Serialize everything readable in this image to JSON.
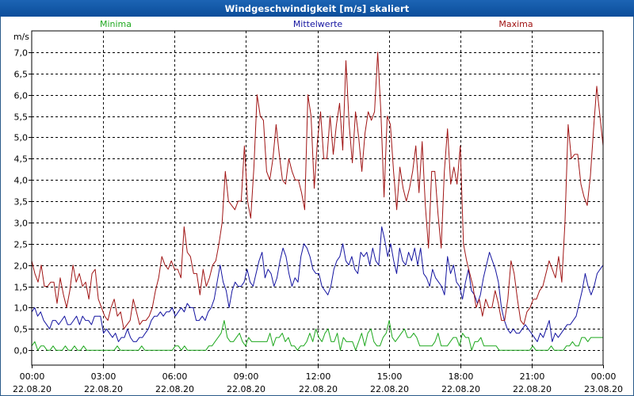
{
  "window": {
    "title": "Windgeschwindigkeit [m/s] skaliert"
  },
  "chart_data": {
    "type": "line",
    "title": "Windgeschwindigkeit [m/s] skaliert",
    "ylabel": "m/s",
    "xlabel": "",
    "ylim": [
      -0.35,
      7.5
    ],
    "xlim": [
      0,
      24
    ],
    "grid": true,
    "y_ticks": [
      "0,0",
      "0,5",
      "1,0",
      "1,5",
      "2,0",
      "2,5",
      "3,0",
      "3,5",
      "4,0",
      "4,5",
      "5,0",
      "5,5",
      "6,0",
      "6,5",
      "7,0"
    ],
    "x_ticks": [
      {
        "time": "00:00",
        "date": "22.08.20"
      },
      {
        "time": "03:00",
        "date": "22.08.20"
      },
      {
        "time": "06:00",
        "date": "22.08.20"
      },
      {
        "time": "09:00",
        "date": "22.08.20"
      },
      {
        "time": "12:00",
        "date": "22.08.20"
      },
      {
        "time": "15:00",
        "date": "22.08.20"
      },
      {
        "time": "18:00",
        "date": "22.08.20"
      },
      {
        "time": "21:00",
        "date": "22.08.20"
      },
      {
        "time": "00:00",
        "date": "23.08.20"
      }
    ],
    "series": [
      {
        "name": "Minima",
        "color": "#1fa81f",
        "values": [
          0.1,
          0.2,
          0.0,
          0.1,
          0.1,
          0.0,
          0.0,
          0.1,
          0.0,
          0.0,
          0.0,
          0.1,
          0.0,
          0.0,
          0.1,
          0.0,
          0.0,
          0.1,
          0.0,
          0.0,
          0.0,
          0.0,
          0.0,
          0.0,
          0.0,
          0.0,
          0.0,
          0.0,
          0.1,
          0.0,
          0.0,
          0.0,
          0.0,
          0.0,
          0.0,
          0.0,
          0.1,
          0.0,
          0.0,
          0.0,
          0.0,
          0.0,
          0.0,
          0.0,
          0.0,
          0.0,
          0.0,
          0.1,
          0.1,
          0.0,
          0.1,
          0.0,
          0.0,
          0.0,
          0.0,
          0.0,
          0.0,
          0.0,
          0.1,
          0.1,
          0.2,
          0.3,
          0.4,
          0.7,
          0.3,
          0.2,
          0.2,
          0.3,
          0.4,
          0.2,
          0.1,
          0.3,
          0.2,
          0.2,
          0.2,
          0.2,
          0.2,
          0.2,
          0.4,
          0.1,
          0.3,
          0.3,
          0.4,
          0.2,
          0.3,
          0.1,
          0.1,
          0.0,
          0.1,
          0.1,
          0.2,
          0.4,
          0.2,
          0.5,
          0.3,
          0.2,
          0.4,
          0.5,
          0.2,
          0.2,
          0.4,
          0.0,
          0.3,
          0.2,
          0.2,
          0.2,
          0.0,
          0.2,
          0.4,
          0.1,
          0.4,
          0.5,
          0.2,
          0.1,
          0.1,
          0.3,
          0.4,
          0.7,
          0.3,
          0.2,
          0.3,
          0.4,
          0.5,
          0.3,
          0.3,
          0.4,
          0.3,
          0.1,
          0.1,
          0.1,
          0.1,
          0.1,
          0.2,
          0.4,
          0.1,
          0.1,
          0.1,
          0.2,
          0.3,
          0.3,
          0.1,
          0.4,
          0.3,
          0.3,
          0.0,
          0.2,
          0.2,
          0.3,
          0.1,
          0.1,
          0.1,
          0.1,
          0.1,
          0.0,
          0.0,
          0.0,
          0.0,
          0.0,
          0.0,
          0.0,
          0.0,
          0.0,
          0.0,
          0.0,
          0.1,
          0.0,
          0.0,
          0.0,
          0.0,
          0.0,
          0.1,
          0.0,
          0.0,
          0.0,
          0.0,
          0.1,
          0.1,
          0.2,
          0.1,
          0.1,
          0.3,
          0.3,
          0.2,
          0.3,
          0.3,
          0.3,
          0.3,
          0.3
        ]
      },
      {
        "name": "Mittelwerte",
        "color": "#1414a0",
        "values": [
          0.9,
          1.0,
          0.8,
          0.9,
          0.7,
          0.6,
          0.5,
          0.7,
          0.7,
          0.6,
          0.7,
          0.8,
          0.6,
          0.6,
          0.7,
          0.8,
          0.6,
          0.8,
          0.7,
          0.7,
          0.6,
          0.8,
          0.8,
          0.8,
          0.4,
          0.5,
          0.4,
          0.3,
          0.4,
          0.2,
          0.3,
          0.3,
          0.5,
          0.3,
          0.2,
          0.2,
          0.3,
          0.3,
          0.4,
          0.5,
          0.7,
          0.8,
          0.8,
          0.9,
          0.8,
          0.9,
          0.9,
          1.0,
          0.8,
          0.9,
          1.0,
          0.9,
          1.1,
          1.0,
          1.0,
          0.7,
          0.7,
          0.8,
          0.7,
          0.9,
          1.0,
          1.2,
          1.6,
          2.0,
          1.6,
          1.4,
          1.0,
          1.4,
          1.6,
          1.5,
          1.5,
          1.6,
          1.9,
          1.6,
          1.5,
          1.8,
          2.1,
          2.3,
          1.7,
          1.9,
          1.8,
          1.5,
          1.7,
          2.1,
          2.4,
          2.2,
          1.8,
          1.5,
          1.7,
          1.6,
          2.2,
          2.5,
          2.4,
          2.2,
          1.9,
          1.8,
          1.8,
          1.5,
          1.4,
          1.3,
          1.5,
          1.9,
          2.1,
          2.2,
          2.5,
          2.1,
          2.0,
          2.2,
          1.9,
          1.8,
          2.3,
          2.2,
          2.3,
          2.0,
          2.4,
          2.1,
          2.0,
          2.9,
          2.6,
          2.2,
          2.5,
          2.1,
          1.8,
          2.4,
          2.1,
          2.0,
          2.3,
          2.1,
          2.4,
          2.0,
          2.4,
          1.8,
          1.7,
          1.5,
          1.9,
          1.7,
          1.6,
          1.5,
          1.3,
          2.2,
          1.8,
          2.0,
          1.6,
          1.5,
          1.2,
          1.6,
          1.9,
          1.4,
          1.3,
          1.1,
          1.3,
          1.7,
          2.0,
          2.3,
          2.1,
          1.9,
          1.6,
          1.0,
          0.7,
          0.5,
          0.4,
          0.5,
          0.4,
          0.4,
          0.5,
          0.6,
          0.5,
          0.4,
          0.3,
          0.2,
          0.4,
          0.3,
          0.5,
          0.7,
          0.2,
          0.4,
          0.3,
          0.4,
          0.5,
          0.6,
          0.6,
          0.7,
          0.8,
          1.1,
          1.4,
          1.8,
          1.5,
          1.3,
          1.5,
          1.8,
          1.9,
          2.0
        ]
      },
      {
        "name": "Maxima",
        "color": "#a01414",
        "values": [
          2.1,
          1.8,
          1.6,
          2.0,
          1.5,
          1.5,
          1.6,
          1.6,
          1.1,
          1.7,
          1.3,
          1.0,
          1.4,
          2.0,
          1.6,
          1.8,
          1.5,
          1.6,
          1.2,
          1.8,
          1.9,
          1.2,
          1.0,
          0.8,
          0.7,
          1.0,
          1.2,
          0.8,
          0.9,
          0.5,
          0.6,
          0.7,
          1.2,
          0.9,
          0.6,
          0.7,
          0.7,
          0.8,
          1.0,
          1.4,
          1.7,
          2.2,
          2.0,
          1.9,
          2.1,
          1.9,
          1.9,
          1.7,
          2.9,
          2.3,
          2.2,
          1.8,
          1.8,
          1.3,
          1.9,
          1.5,
          1.7,
          2.0,
          2.1,
          2.5,
          3.0,
          4.2,
          3.5,
          3.4,
          3.3,
          3.5,
          3.5,
          4.8,
          3.5,
          3.1,
          4.3,
          6.0,
          5.5,
          5.4,
          4.2,
          4.0,
          4.5,
          5.3,
          4.6,
          4.0,
          3.9,
          4.5,
          4.2,
          4.0,
          4.0,
          3.7,
          3.3,
          6.0,
          5.5,
          3.8,
          4.9,
          5.6,
          4.5,
          4.5,
          5.5,
          4.6,
          5.3,
          5.8,
          4.7,
          6.8,
          5.3,
          4.4,
          5.6,
          5.0,
          4.2,
          5.1,
          5.6,
          5.4,
          5.6,
          7.0,
          5.6,
          3.6,
          5.5,
          5.3,
          4.2,
          3.3,
          4.3,
          3.8,
          3.5,
          3.8,
          4.2,
          4.8,
          3.7,
          4.9,
          3.4,
          2.4,
          4.2,
          4.2,
          3.2,
          2.4,
          4.2,
          5.2,
          3.9,
          4.3,
          3.9,
          4.8,
          2.5,
          2.1,
          1.8,
          1.5,
          1.0,
          1.2,
          0.8,
          1.2,
          1.0,
          1.0,
          1.4,
          1.1,
          0.7,
          0.7,
          1.2,
          2.1,
          1.8,
          1.2,
          0.7,
          0.6,
          0.9,
          1.0,
          1.2,
          1.2,
          1.4,
          1.5,
          1.8,
          2.1,
          1.9,
          1.7,
          2.2,
          1.6,
          3.0,
          5.3,
          4.5,
          4.6,
          4.6,
          3.9,
          3.6,
          3.4,
          4.1,
          5.2,
          6.2,
          5.5,
          4.8
        ]
      }
    ]
  }
}
